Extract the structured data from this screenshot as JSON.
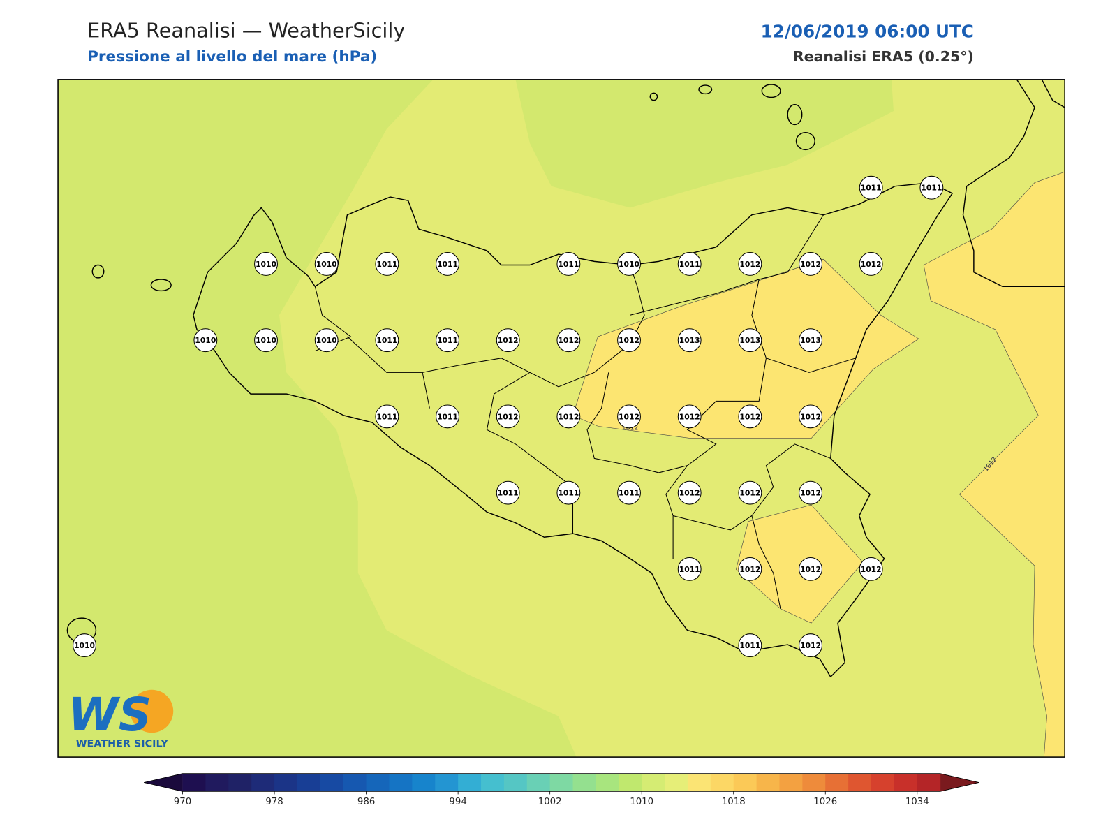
{
  "header": {
    "title": "ERA5 Reanalisi — WeatherSicily",
    "subtitle": "Pressione al livello del mare (hPa)",
    "datetime": "12/06/2019 06:00 UTC",
    "source": "Reanalisi ERA5 (0.25°)"
  },
  "map": {
    "stations": [
      1011,
      1011,
      1010,
      1010,
      1011,
      1011,
      1011,
      1010,
      1011,
      1012,
      1012,
      1012,
      1010,
      1010,
      1010,
      1011,
      1011,
      1012,
      1012,
      1012,
      1013,
      1013,
      1013,
      1011,
      1011,
      1012,
      1012,
      1012,
      1012,
      1012,
      1012,
      1011,
      1011,
      1011,
      1012,
      1012,
      1012,
      1011,
      1012,
      1012,
      1012,
      1010,
      1011,
      1012
    ],
    "contour_labels": [
      1012,
      1012
    ]
  },
  "colorbar": {
    "lim": [
      970,
      1036
    ],
    "ticks": [
      970,
      978,
      986,
      994,
      1002,
      1010,
      1018,
      1026,
      1034
    ],
    "colors": [
      "#1e0f50",
      "#201a5e",
      "#1f2266",
      "#1e2b78",
      "#1b3487",
      "#183e95",
      "#174aa3",
      "#1658b0",
      "#1566ba",
      "#1574c4",
      "#1784cc",
      "#2395d2",
      "#33aed4",
      "#45bfcf",
      "#55c6c4",
      "#69d0b5",
      "#7ed9a3",
      "#94e08f",
      "#a8e57e",
      "#c0e86e",
      "#d5ec73",
      "#e6ee78",
      "#fbe474",
      "#fcd765",
      "#fbc957",
      "#f7b54a",
      "#f3a141",
      "#ee8b3b",
      "#e77035",
      "#df5630",
      "#d6412d",
      "#c8302a",
      "#b42527"
    ],
    "extend_colors": [
      "#1a0a3c",
      "#7a1a1e"
    ]
  },
  "logo": {
    "mark": "WS",
    "name": "WEATHER SICILY"
  }
}
